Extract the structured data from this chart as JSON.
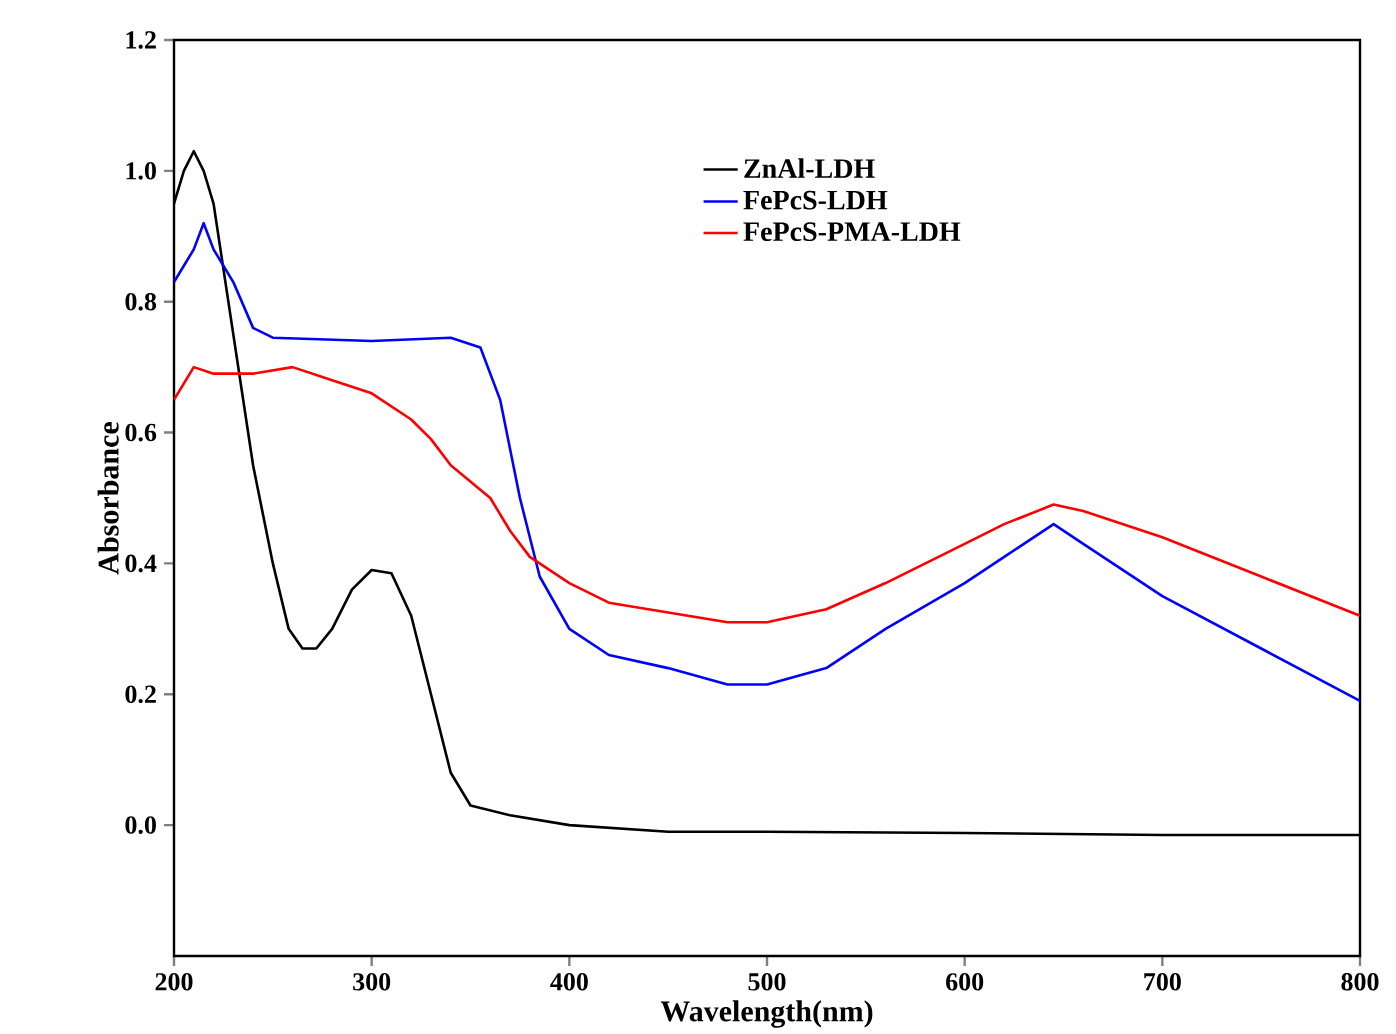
{
  "chart_data": {
    "type": "line",
    "xlabel": "Wavelength(nm)",
    "ylabel": "Absorbance",
    "xlim": [
      200,
      800
    ],
    "xticks": [
      200,
      300,
      400,
      500,
      600,
      700,
      800
    ],
    "ylim": [
      -0.2,
      1.2
    ],
    "yticks": [
      {
        "value": 0,
        "label": "0.0"
      },
      0.2,
      0.4,
      0.6,
      0.8,
      {
        "value": 1,
        "label": "1.0"
      },
      1.2
    ],
    "legend": "top right",
    "grid": false,
    "marker": "none",
    "line_style": "solid",
    "series": [
      {
        "name": "ZnAl-LDH",
        "color": "#000000",
        "x": [
          200,
          205,
          210,
          215,
          220,
          230,
          240,
          250,
          258,
          265,
          272,
          280,
          290,
          300,
          310,
          320,
          330,
          340,
          350,
          370,
          400,
          450,
          500,
          600,
          700,
          800
        ],
        "values": [
          0.95,
          1.0,
          1.03,
          1.0,
          0.95,
          0.75,
          0.55,
          0.4,
          0.3,
          0.27,
          0.27,
          0.3,
          0.36,
          0.39,
          0.385,
          0.32,
          0.2,
          0.08,
          0.03,
          0.015,
          0.0,
          -0.01,
          -0.01,
          -0.012,
          -0.015,
          -0.015
        ]
      },
      {
        "name": "FePcS-LDH",
        "color": "#0000ff",
        "x": [
          200,
          210,
          215,
          220,
          230,
          240,
          250,
          300,
          340,
          355,
          365,
          375,
          385,
          400,
          420,
          450,
          480,
          500,
          530,
          560,
          600,
          620,
          645,
          660,
          700,
          750,
          800
        ],
        "values": [
          0.83,
          0.88,
          0.92,
          0.88,
          0.83,
          0.76,
          0.745,
          0.74,
          0.745,
          0.73,
          0.65,
          0.5,
          0.38,
          0.3,
          0.26,
          0.24,
          0.215,
          0.215,
          0.24,
          0.3,
          0.37,
          0.41,
          0.46,
          0.43,
          0.35,
          0.27,
          0.19
        ]
      },
      {
        "name": "FePcS-PMA-LDH",
        "color": "#ff0000",
        "x": [
          200,
          210,
          220,
          240,
          260,
          280,
          300,
          320,
          330,
          340,
          360,
          370,
          380,
          400,
          420,
          450,
          480,
          500,
          530,
          560,
          600,
          620,
          645,
          660,
          700,
          750,
          800
        ],
        "values": [
          0.65,
          0.7,
          0.69,
          0.69,
          0.7,
          0.68,
          0.66,
          0.62,
          0.59,
          0.55,
          0.5,
          0.45,
          0.41,
          0.37,
          0.34,
          0.325,
          0.31,
          0.31,
          0.33,
          0.37,
          0.43,
          0.46,
          0.49,
          0.48,
          0.44,
          0.38,
          0.32
        ]
      }
    ]
  }
}
